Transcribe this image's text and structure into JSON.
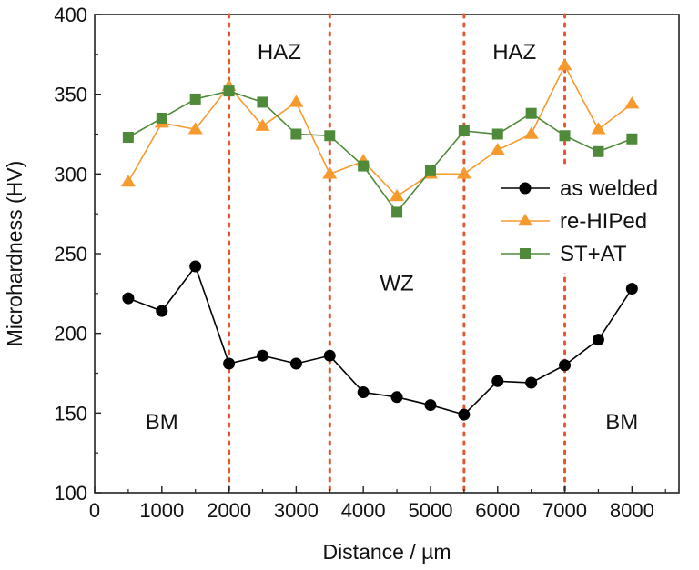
{
  "chart_data": {
    "type": "line",
    "xlabel": "Distance / µm",
    "ylabel": "Microhardness (HV)",
    "xlim": [
      0,
      8700
    ],
    "ylim": [
      100,
      400
    ],
    "xticks": [
      0,
      1000,
      2000,
      3000,
      4000,
      5000,
      6000,
      7000,
      8000
    ],
    "yticks": [
      100,
      150,
      200,
      250,
      300,
      350,
      400
    ],
    "x": [
      500,
      1000,
      1500,
      2000,
      2500,
      3000,
      3500,
      4000,
      4500,
      5000,
      5500,
      6000,
      6500,
      7000,
      7500,
      8000
    ],
    "series": [
      {
        "name": "as welded",
        "color": "#000000",
        "marker": "circle",
        "values": [
          222,
          214,
          242,
          181,
          186,
          181,
          186,
          163,
          160,
          155,
          149,
          170,
          169,
          180,
          196,
          228
        ]
      },
      {
        "name": "re-HIPed",
        "color": "#f79a2e",
        "marker": "triangle",
        "values": [
          295,
          332,
          328,
          355,
          330,
          345,
          300,
          308,
          286,
          300,
          300,
          315,
          325,
          368,
          328,
          344
        ]
      },
      {
        "name": "ST+AT",
        "color": "#4f8a3a",
        "marker": "square",
        "values": [
          323,
          335,
          347,
          352,
          345,
          325,
          324,
          305,
          276,
          302,
          327,
          325,
          338,
          324,
          314,
          322
        ]
      }
    ],
    "boundaries": [
      2000,
      3500,
      5500,
      7000
    ],
    "boundary_color": "#e4572e",
    "regions": [
      {
        "label": "HAZ",
        "x": 2750,
        "y": 372
      },
      {
        "label": "HAZ",
        "x": 6250,
        "y": 372
      },
      {
        "label": "WZ",
        "x": 4500,
        "y": 227
      },
      {
        "label": "BM",
        "x": 1000,
        "y": 140
      },
      {
        "label": "BM",
        "x": 7850,
        "y": 140
      }
    ],
    "legend_position": "right",
    "grid": false
  }
}
